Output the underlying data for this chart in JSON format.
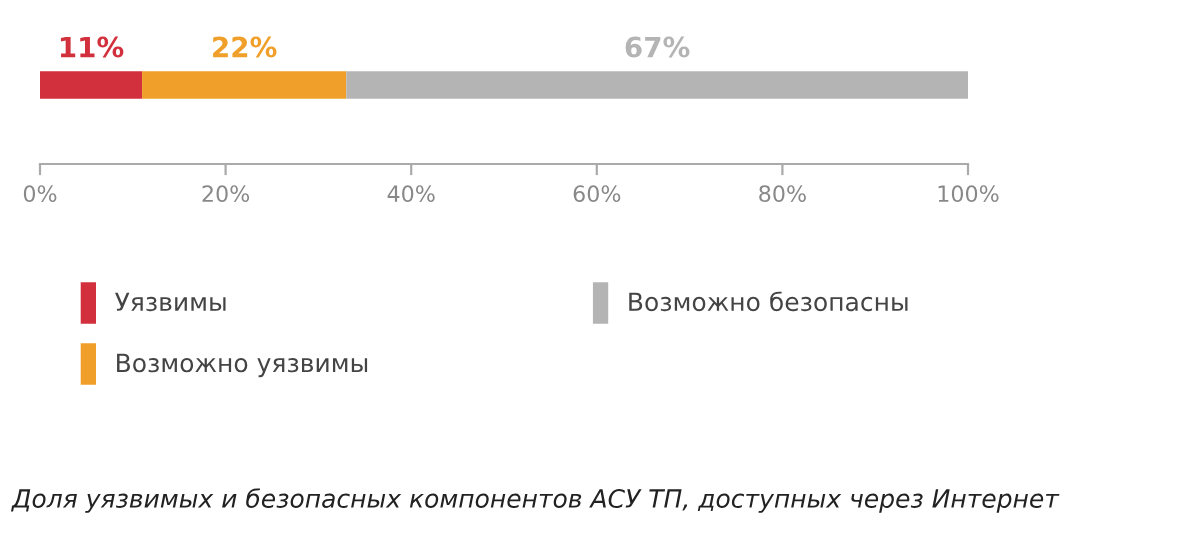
{
  "chart_data": {
    "type": "bar",
    "orientation": "horizontal",
    "stacked": true,
    "categories": [
      null
    ],
    "series": [
      {
        "name": "Уязвимы",
        "color": "#d2303c",
        "values": [
          11
        ],
        "value_labels": [
          "11%"
        ]
      },
      {
        "name": "Возможно уязвимы",
        "color": "#f0a02a",
        "values": [
          22
        ],
        "value_labels": [
          "22%"
        ]
      },
      {
        "name": "Возможно безопасны",
        "color": "#b4b4b4",
        "values": [
          67
        ],
        "value_labels": [
          "67%"
        ]
      }
    ],
    "xlim": [
      0,
      100
    ],
    "xticks": [
      {
        "value": 0,
        "label": "0%"
      },
      {
        "value": 20,
        "label": "20%"
      },
      {
        "value": 40,
        "label": "40%"
      },
      {
        "value": 60,
        "label": "60%"
      },
      {
        "value": 80,
        "label": "80%"
      },
      {
        "value": 100,
        "label": "100%"
      }
    ],
    "tick_labels": "x",
    "grid": false,
    "legend": "bottom",
    "annotations": [
      "Доля уязвимых и безопасных компонентов АСУ ТП, доступных через Интернет"
    ]
  }
}
